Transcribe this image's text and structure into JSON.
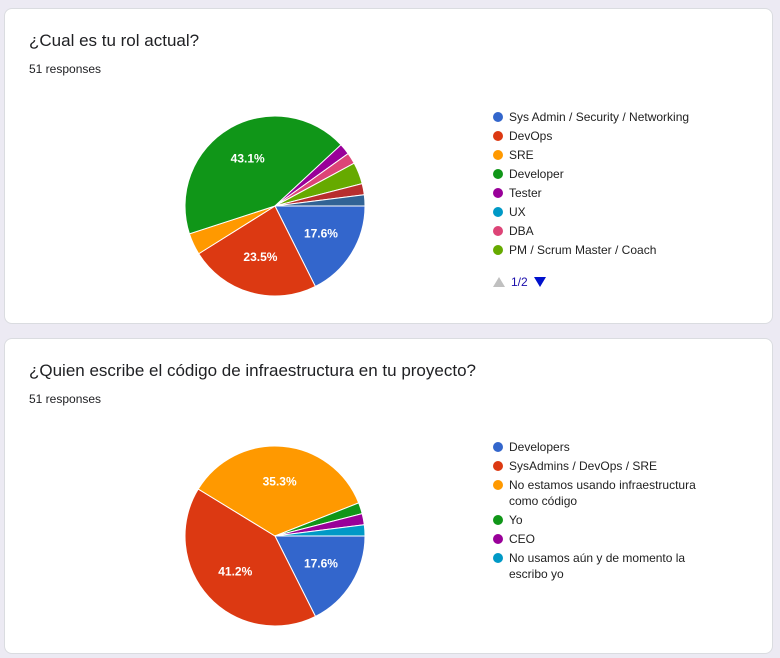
{
  "chart_data": [
    {
      "type": "pie",
      "title": "¿Cual es tu rol actual?",
      "subtitle": "51 responses",
      "categories": [
        "Sys Admin / Security / Networking",
        "DevOps",
        "SRE",
        "Developer",
        "Tester",
        "UX",
        "DBA",
        "PM / Scrum Master / Coach",
        null,
        null
      ],
      "values": [
        17.6,
        23.5,
        3.9,
        43.1,
        2,
        0,
        2,
        3.9,
        2,
        2
      ],
      "value_labels": [
        "17.6%",
        "23.5%",
        null,
        "43.1%",
        null,
        null,
        null,
        null,
        null,
        null
      ],
      "colors": [
        "#3366cc",
        "#dc3912",
        "#ff9900",
        "#109618",
        "#990099",
        "#0099c6",
        "#dd4477",
        "#66aa00",
        "#b82e2e",
        "#316395"
      ],
      "legend_page": "1/2"
    },
    {
      "type": "pie",
      "title": "¿Quien escribe el código de infraestructura en tu proyecto?",
      "subtitle": "51 responses",
      "categories": [
        "Developers",
        "SysAdmins / DevOps / SRE",
        "No estamos usando infraestructura como código",
        "Yo",
        "CEO",
        "No usamos aún y de momento la escribo yo"
      ],
      "values": [
        17.6,
        41.2,
        35.3,
        2,
        2,
        2
      ],
      "value_labels": [
        "17.6%",
        "41.2%",
        "35.3%",
        null,
        null,
        null
      ],
      "colors": [
        "#3366cc",
        "#dc3912",
        "#ff9900",
        "#109618",
        "#990099",
        "#0099c6"
      ]
    }
  ]
}
